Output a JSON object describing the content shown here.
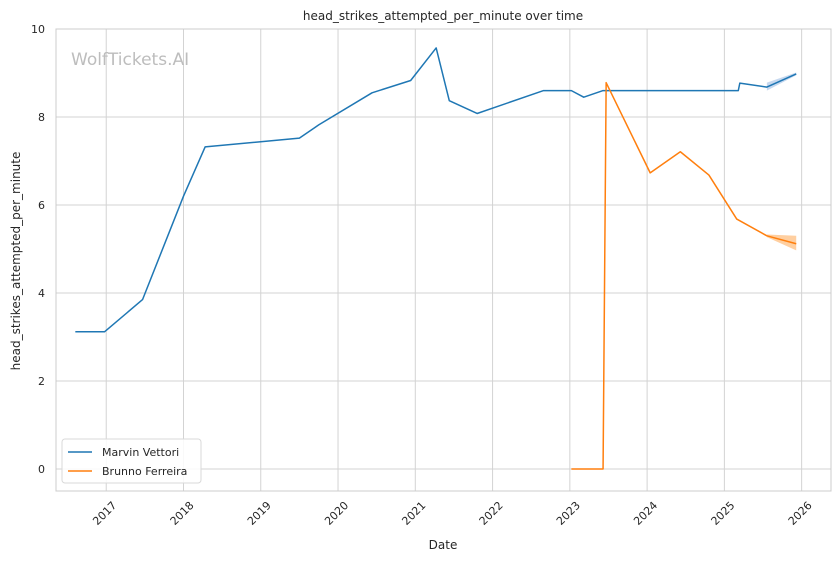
{
  "chart_data": {
    "type": "line",
    "title": "head_strikes_attempted_per_minute over time",
    "xlabel": "Date",
    "ylabel": "head_strikes_attempted_per_minute",
    "watermark": "WolfTickets.AI",
    "xlim": [
      2016.35,
      2026.38
    ],
    "ylim": [
      -0.5,
      10
    ],
    "x_ticks": [
      2017,
      2018,
      2019,
      2020,
      2021,
      2022,
      2023,
      2024,
      2025,
      2026
    ],
    "x_tick_labels": [
      "2017",
      "2018",
      "2019",
      "2020",
      "2021",
      "2022",
      "2023",
      "2024",
      "2025",
      "2026"
    ],
    "y_ticks": [
      0,
      2,
      4,
      6,
      8,
      10
    ],
    "y_tick_labels": [
      "0",
      "2",
      "4",
      "6",
      "8",
      "10"
    ],
    "grid": true,
    "legend_position": "lower-left",
    "series": [
      {
        "name": "Marvin Vettori",
        "color": "#1f77b4",
        "x": [
          2016.6,
          2016.98,
          2017.47,
          2018.0,
          2018.28,
          2019.5,
          2019.75,
          2020.44,
          2020.94,
          2021.27,
          2021.44,
          2021.8,
          2022.66,
          2023.02,
          2023.18,
          2023.43,
          2024.67,
          2025.18,
          2025.2,
          2025.55,
          2025.93
        ],
        "y": [
          3.12,
          3.12,
          3.85,
          6.2,
          7.32,
          7.52,
          7.82,
          8.55,
          8.83,
          9.57,
          8.37,
          8.08,
          8.6,
          8.6,
          8.45,
          8.6,
          8.6,
          8.6,
          8.77,
          8.68,
          8.98
        ],
        "band": {
          "x": [
            2025.55,
            2025.93
          ],
          "lower": [
            8.6,
            8.95
          ],
          "upper": [
            8.78,
            9.01
          ],
          "color": "#aec7e8"
        }
      },
      {
        "name": "Brunno Ferreira",
        "color": "#ff7f0e",
        "x": [
          2023.02,
          2023.43,
          2023.47,
          2024.04,
          2024.43,
          2024.8,
          2025.16,
          2025.55,
          2025.93
        ],
        "y": [
          0.0,
          0.0,
          8.78,
          6.73,
          7.21,
          6.68,
          5.68,
          5.3,
          5.12
        ],
        "band": {
          "x": [
            2025.55,
            2025.93
          ],
          "lower": [
            5.27,
            4.97
          ],
          "upper": [
            5.33,
            5.3
          ],
          "color": "#ffbb78"
        }
      }
    ]
  }
}
